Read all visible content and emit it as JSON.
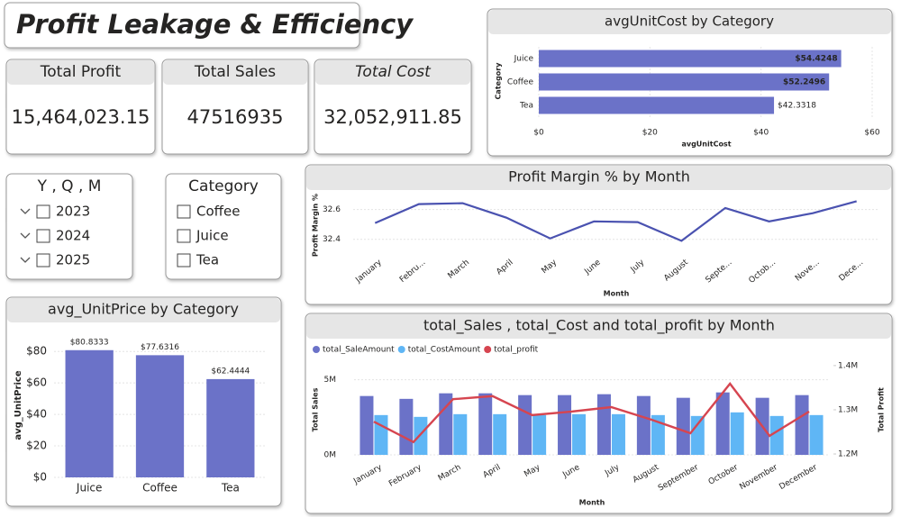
{
  "title": "Profit Leakage & Efficiency",
  "kpis": [
    {
      "label": "Total Profit",
      "value": "15,464,023.15"
    },
    {
      "label": "Total Sales",
      "value": "47516935"
    },
    {
      "label": "Total Cost",
      "value": "32,052,911.85"
    }
  ],
  "slicers": [
    {
      "title": "Y , Q , M",
      "items": [
        "2023",
        "2024",
        "2025"
      ]
    },
    {
      "title": "Category",
      "items": [
        "Coffee",
        "Juice",
        "Tea"
      ]
    }
  ],
  "chart_data": [
    {
      "type": "bar",
      "horizontal": true,
      "title": "avgUnitCost by Category",
      "categories": [
        "Juice",
        "Coffee",
        "Tea"
      ],
      "values": [
        54.4248,
        52.2496,
        42.3318
      ],
      "value_labels": [
        "$54.4248",
        "$52.2496",
        "$42.3318"
      ],
      "color": "#6b72c8",
      "xlim": [
        0,
        60
      ],
      "xticks": [
        {
          "value": 0,
          "label": "$0"
        },
        {
          "value": 20,
          "label": "$20"
        },
        {
          "value": 40,
          "label": "$40"
        },
        {
          "value": 60,
          "label": "$60"
        }
      ],
      "x_label": "avgUnitCost",
      "y_label": "Category",
      "grid": true
    },
    {
      "type": "line",
      "title": "Profit Margin % by Month",
      "categories": [
        "January",
        "Febru...",
        "March",
        "April",
        "May",
        "June",
        "July",
        "August",
        "Septe...",
        "Octob...",
        "Nove...",
        "Dece..."
      ],
      "values": [
        32.509,
        32.636,
        32.642,
        32.545,
        32.406,
        32.52,
        32.515,
        32.39,
        32.61,
        32.52,
        32.575,
        32.655
      ],
      "color": "#4a52b0",
      "ylim": [
        32.35,
        32.7
      ],
      "yticks": [
        32.4,
        32.6
      ],
      "x_label": "Month",
      "y_label": "Profit Margin %",
      "grid": true
    },
    {
      "type": "bar",
      "title": "avg_UnitPrice by Category",
      "categories": [
        "Juice",
        "Coffee",
        "Tea"
      ],
      "values": [
        80.8333,
        77.6316,
        62.4444
      ],
      "value_labels": [
        "$80.8333",
        "$77.6316",
        "$62.4444"
      ],
      "color": "#6b72c8",
      "ylim": [
        0,
        87
      ],
      "yticks": [
        {
          "value": 0,
          "label": "$0"
        },
        {
          "value": 20,
          "label": "$20"
        },
        {
          "value": 40,
          "label": "$40"
        },
        {
          "value": 60,
          "label": "$60"
        },
        {
          "value": 80,
          "label": "$80"
        }
      ],
      "y_label": "avg_UnitPrice",
      "grid": true
    },
    {
      "type": "combo",
      "title": "total_Sales , total_Cost and total_profit by Month",
      "categories": [
        "January",
        "February",
        "March",
        "April",
        "May",
        "June",
        "July",
        "August",
        "September",
        "October",
        "November",
        "December"
      ],
      "series": [
        {
          "name": "total_SaleAmount",
          "color": "#6b72c8",
          "values": [
            3920000,
            3730000,
            4100000,
            4100000,
            3980000,
            3980000,
            4040000,
            3920000,
            3800000,
            4160000,
            3800000,
            3980000
          ]
        },
        {
          "name": "total_CostAmount",
          "color": "#5fb6f5",
          "values": [
            2650000,
            2530000,
            2710000,
            2710000,
            2650000,
            2710000,
            2710000,
            2650000,
            2590000,
            2830000,
            2590000,
            2650000
          ]
        },
        {
          "name": "total_profit",
          "color": "#d64550",
          "axis": "y2",
          "values": [
            1273000,
            1227000,
            1324000,
            1331000,
            1288000,
            1296000,
            1306000,
            1278000,
            1247000,
            1359000,
            1241000,
            1296000
          ]
        }
      ],
      "ylim": [
        0,
        6300000
      ],
      "yticks": [
        {
          "value": 0,
          "label": "0M"
        },
        {
          "value": 5000000,
          "label": "5M"
        }
      ],
      "y2lim": [
        1198000,
        1412000
      ],
      "y2ticks": [
        {
          "value": 1200000,
          "label": "1.2M"
        },
        {
          "value": 1300000,
          "label": "1.3M"
        },
        {
          "value": 1400000,
          "label": "1.4M"
        }
      ],
      "x_label": "Month",
      "y_label": "Total Sales",
      "y2_label": "Total Profit",
      "grid": true
    }
  ]
}
